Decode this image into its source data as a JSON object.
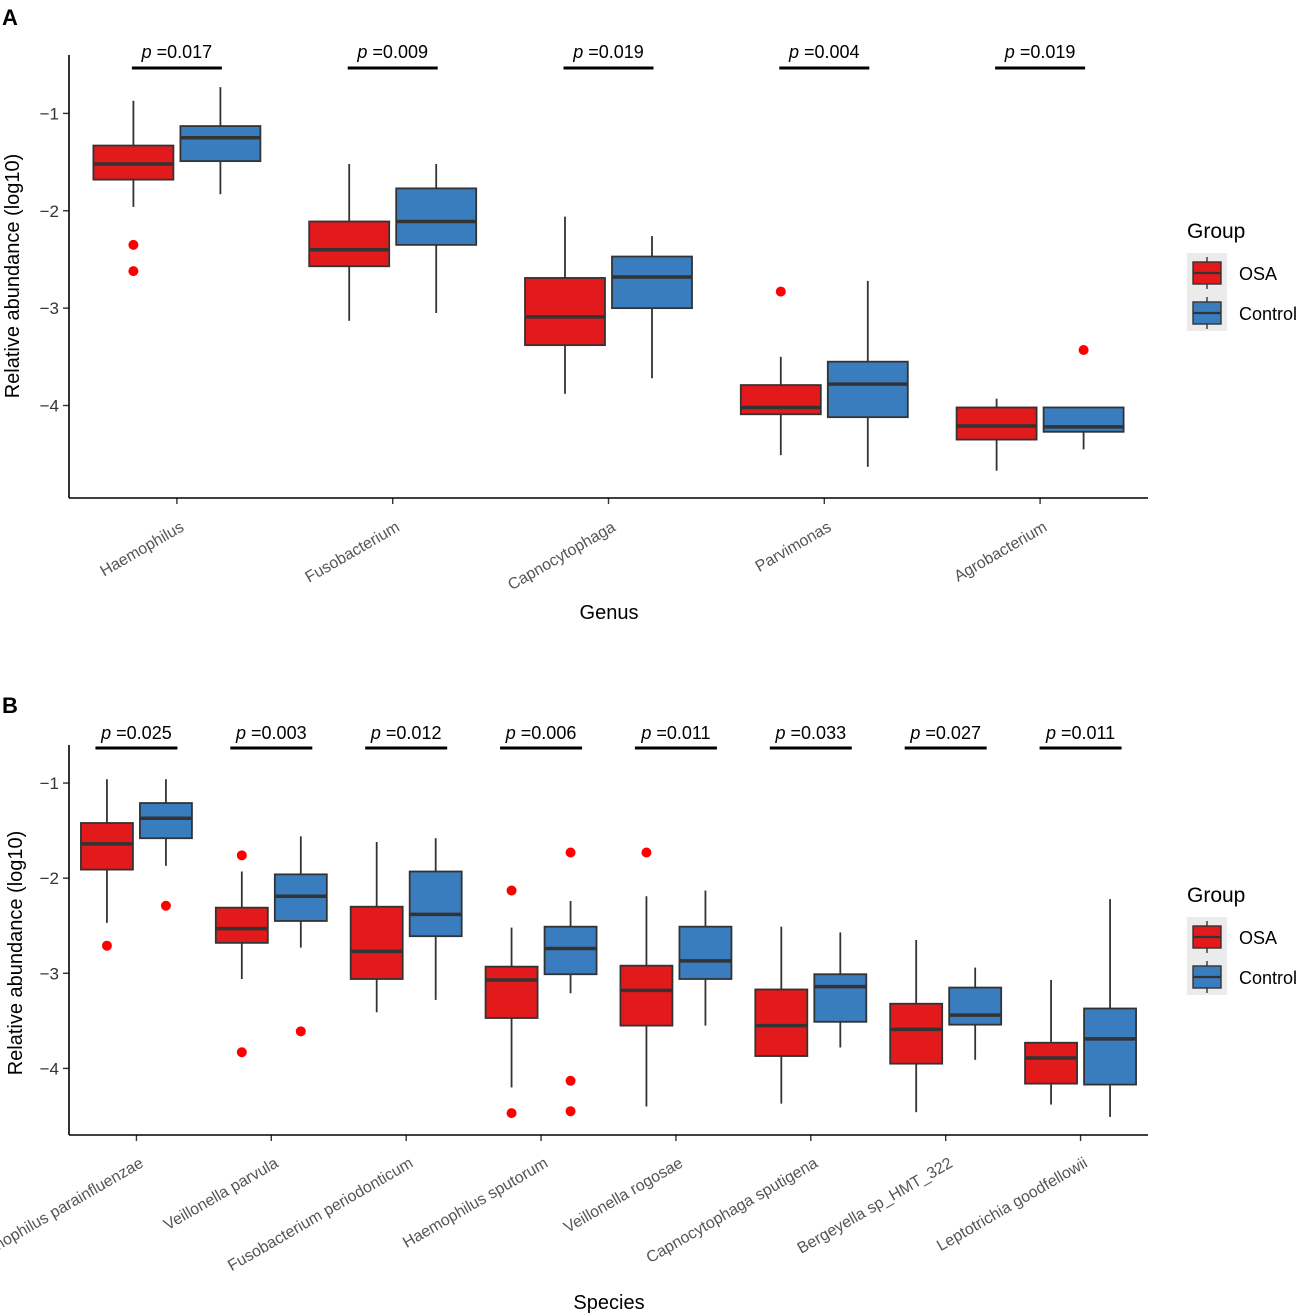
{
  "colors": {
    "osa": "#e31a1c",
    "control": "#3a7dbf",
    "outlier": "#ff0000",
    "line": "#333333"
  },
  "legend": {
    "title": "Group",
    "labels": [
      "OSA",
      "Control"
    ]
  },
  "chart_data": [
    {
      "type": "boxplot",
      "panel_label": "A",
      "xlabel": "Genus",
      "ylabel": "Relative abundance (log10)",
      "ylim": [
        -4.95,
        -0.4
      ],
      "yticks": [
        -1,
        -2,
        -3,
        -4
      ],
      "ytick_labels": [
        "−1",
        "−2",
        "−3",
        "−4"
      ],
      "categories": [
        "Haemophilus",
        "Fusobacterium",
        "Capnocytophaga",
        "Parvimonas",
        "Agrobacterium"
      ],
      "p_labels": [
        "p =0.017",
        "p =0.009",
        "p =0.019",
        "p =0.004",
        "p =0.019"
      ],
      "series": [
        {
          "name": "OSA",
          "boxes": [
            {
              "lo": -1.96,
              "q1": -1.68,
              "med": -1.52,
              "q3": -1.33,
              "hi": -0.87,
              "outliers": [
                -2.35,
                -2.62
              ]
            },
            {
              "lo": -3.13,
              "q1": -2.57,
              "med": -2.4,
              "q3": -2.11,
              "hi": -1.52,
              "outliers": []
            },
            {
              "lo": -3.88,
              "q1": -3.38,
              "med": -3.09,
              "q3": -2.69,
              "hi": -2.06,
              "outliers": []
            },
            {
              "lo": -4.51,
              "q1": -4.09,
              "med": -4.02,
              "q3": -3.79,
              "hi": -3.5,
              "outliers": [
                -2.83
              ]
            },
            {
              "lo": -4.67,
              "q1": -4.35,
              "med": -4.21,
              "q3": -4.02,
              "hi": -3.93,
              "outliers": []
            }
          ]
        },
        {
          "name": "Control",
          "boxes": [
            {
              "lo": -1.83,
              "q1": -1.49,
              "med": -1.25,
              "q3": -1.13,
              "hi": -0.73,
              "outliers": []
            },
            {
              "lo": -3.05,
              "q1": -2.35,
              "med": -2.11,
              "q3": -1.77,
              "hi": -1.52,
              "outliers": []
            },
            {
              "lo": -3.72,
              "q1": -3.0,
              "med": -2.68,
              "q3": -2.47,
              "hi": -2.26,
              "outliers": []
            },
            {
              "lo": -4.63,
              "q1": -4.12,
              "med": -3.78,
              "q3": -3.55,
              "hi": -2.72,
              "outliers": []
            },
            {
              "lo": -4.45,
              "q1": -4.27,
              "med": -4.22,
              "q3": -4.02,
              "hi": -4.02,
              "outliers": [
                -3.43
              ]
            }
          ]
        }
      ]
    },
    {
      "type": "boxplot",
      "panel_label": "B",
      "xlabel": "Species",
      "ylabel": "Relative abundance (log10)",
      "ylim": [
        -4.7,
        -0.6
      ],
      "yticks": [
        -1,
        -2,
        -3,
        -4
      ],
      "ytick_labels": [
        "−1",
        "−2",
        "−3",
        "−4"
      ],
      "categories": [
        "Haemophilus parainfluenzae",
        "Veillonella parvula",
        "Fusobacterium periodonticum",
        "Haemophilus sputorum",
        "Veillonella rogosae",
        "Capnocytophaga sputigena",
        "Bergeyella sp_HMT_322",
        "Leptotrichia goodfellowii"
      ],
      "p_labels": [
        "p =0.025",
        "p =0.003",
        "p =0.012",
        "p =0.006",
        "p =0.011",
        "p =0.033",
        "p =0.027",
        "p =0.011"
      ],
      "series": [
        {
          "name": "OSA",
          "boxes": [
            {
              "lo": -2.47,
              "q1": -1.91,
              "med": -1.64,
              "q3": -1.42,
              "hi": -0.96,
              "outliers": [
                -2.71
              ]
            },
            {
              "lo": -3.06,
              "q1": -2.68,
              "med": -2.53,
              "q3": -2.31,
              "hi": -1.93,
              "outliers": [
                -1.76,
                -3.83
              ]
            },
            {
              "lo": -3.41,
              "q1": -3.06,
              "med": -2.77,
              "q3": -2.3,
              "hi": -1.62,
              "outliers": []
            },
            {
              "lo": -4.2,
              "q1": -3.47,
              "med": -3.07,
              "q3": -2.93,
              "hi": -2.52,
              "outliers": [
                -2.13,
                -4.47
              ]
            },
            {
              "lo": -4.4,
              "q1": -3.55,
              "med": -3.18,
              "q3": -2.92,
              "hi": -2.19,
              "outliers": [
                -1.73
              ]
            },
            {
              "lo": -4.37,
              "q1": -3.87,
              "med": -3.55,
              "q3": -3.17,
              "hi": -2.51,
              "outliers": []
            },
            {
              "lo": -4.46,
              "q1": -3.95,
              "med": -3.59,
              "q3": -3.32,
              "hi": -2.65,
              "outliers": []
            },
            {
              "lo": -4.38,
              "q1": -4.16,
              "med": -3.89,
              "q3": -3.73,
              "hi": -3.07,
              "outliers": []
            }
          ]
        },
        {
          "name": "Control",
          "boxes": [
            {
              "lo": -1.87,
              "q1": -1.58,
              "med": -1.37,
              "q3": -1.21,
              "hi": -0.96,
              "outliers": [
                -2.29
              ]
            },
            {
              "lo": -2.73,
              "q1": -2.45,
              "med": -2.19,
              "q3": -1.96,
              "hi": -1.56,
              "outliers": [
                -3.61
              ]
            },
            {
              "lo": -3.28,
              "q1": -2.61,
              "med": -2.38,
              "q3": -1.93,
              "hi": -1.58,
              "outliers": []
            },
            {
              "lo": -3.21,
              "q1": -3.01,
              "med": -2.74,
              "q3": -2.51,
              "hi": -2.24,
              "outliers": [
                -1.73,
                -4.13,
                -4.45
              ]
            },
            {
              "lo": -3.55,
              "q1": -3.06,
              "med": -2.87,
              "q3": -2.51,
              "hi": -2.13,
              "outliers": []
            },
            {
              "lo": -3.78,
              "q1": -3.51,
              "med": -3.14,
              "q3": -3.01,
              "hi": -2.57,
              "outliers": []
            },
            {
              "lo": -3.91,
              "q1": -3.54,
              "med": -3.44,
              "q3": -3.15,
              "hi": -2.94,
              "outliers": []
            },
            {
              "lo": -4.51,
              "q1": -4.17,
              "med": -3.69,
              "q3": -3.37,
              "hi": -2.22,
              "outliers": []
            }
          ]
        }
      ]
    }
  ]
}
